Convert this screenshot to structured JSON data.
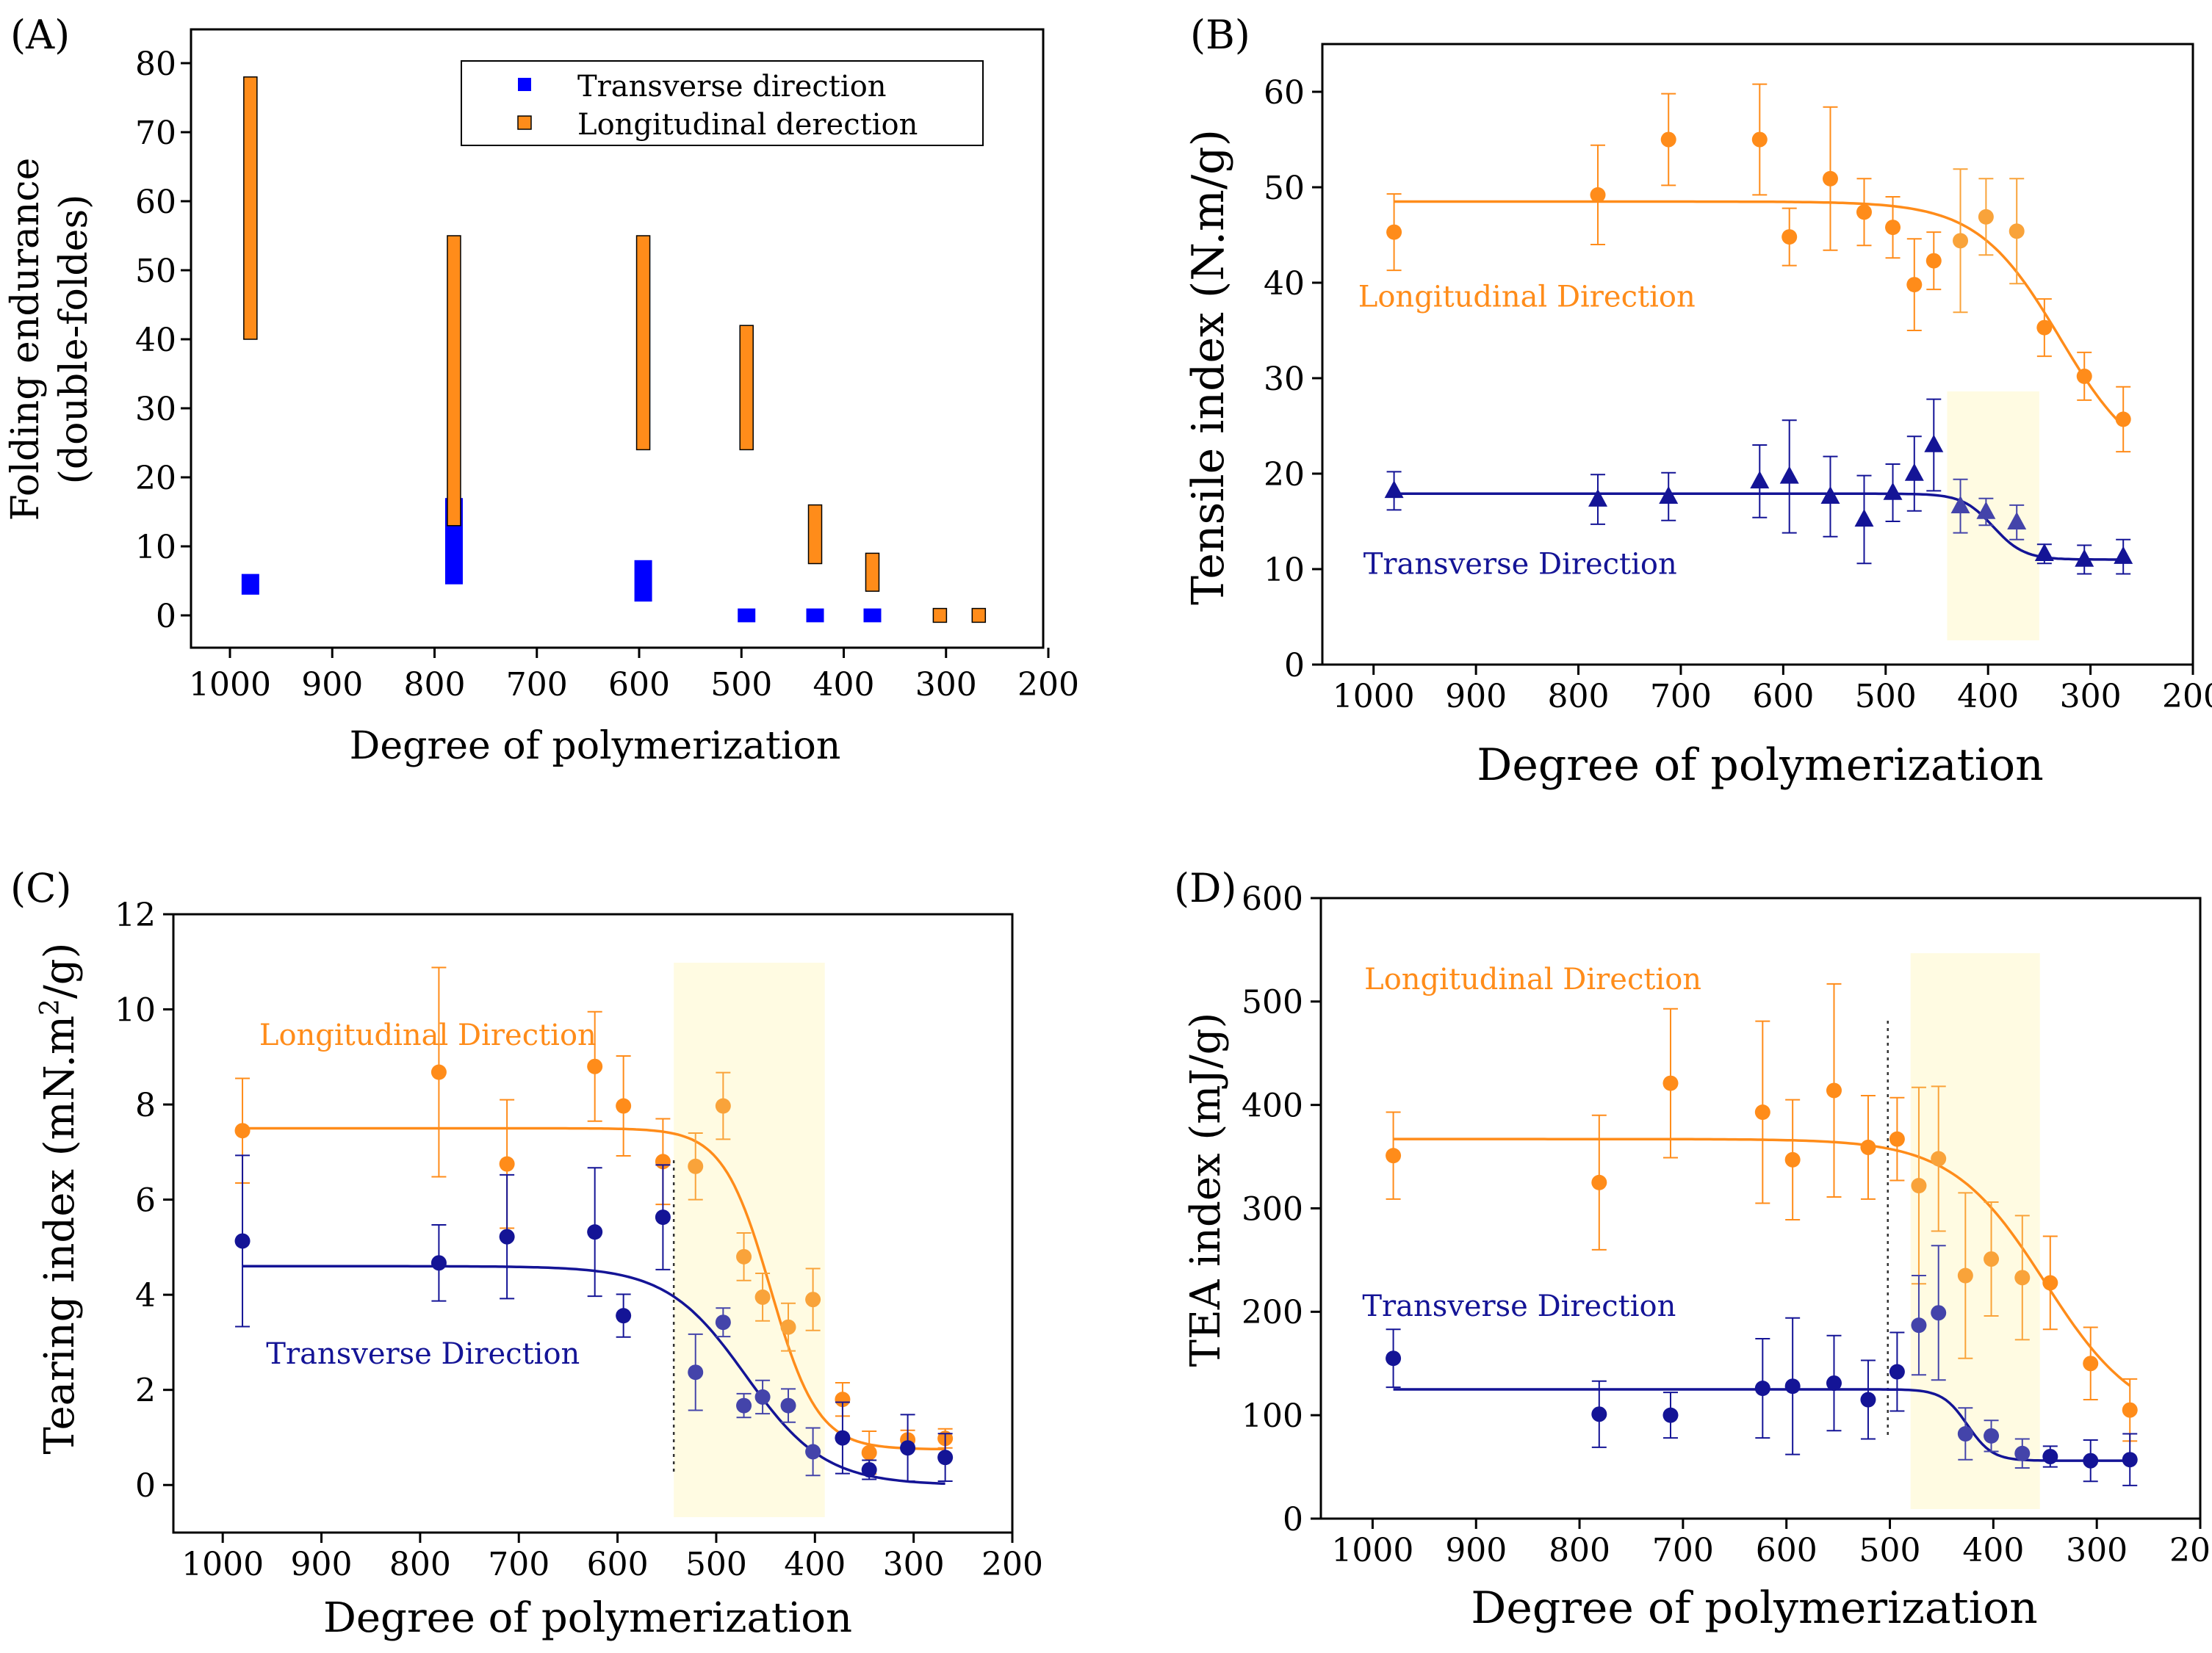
{
  "colors": {
    "orange": "#FF8C1A",
    "orange_light": "#F9A33A",
    "blue": "#0000FF",
    "navy": "#141496",
    "navy_light": "#4444AA",
    "shade": "#FFFBE2",
    "axis": "#000000"
  },
  "chart_data": [
    {
      "panel": "(A)",
      "type": "bar",
      "subtype": "floating-range",
      "xlabel": "Degree of polymerization",
      "ylabel": "Folding endurance",
      "ylabel2": "(double-foldes)",
      "xlim": [
        1050,
        200
      ],
      "ylim": [
        -5,
        85
      ],
      "xticks": [
        1000,
        900,
        800,
        700,
        600,
        500,
        400,
        300,
        200
      ],
      "yticks": [
        0,
        10,
        20,
        30,
        40,
        50,
        60,
        70,
        80
      ],
      "legend": {
        "position": "top-right",
        "entries": [
          "Transverse direction",
          "Longitudinal derection"
        ]
      },
      "series": [
        {
          "name": "Transverse direction",
          "color": "blue",
          "bars": [
            {
              "x": 980,
              "low": 3,
              "high": 6
            },
            {
              "x": 781,
              "low": 4.5,
              "high": 17
            },
            {
              "x": 596,
              "low": 2,
              "high": 8
            },
            {
              "x": 495,
              "low": -1,
              "high": 1
            },
            {
              "x": 428,
              "low": -1,
              "high": 1
            },
            {
              "x": 372,
              "low": -1,
              "high": 1
            }
          ]
        },
        {
          "name": "Longitudinal derection",
          "color": "orange",
          "bars": [
            {
              "x": 980,
              "low": 40,
              "high": 78
            },
            {
              "x": 781,
              "low": 13,
              "high": 55
            },
            {
              "x": 596,
              "low": 24,
              "high": 55
            },
            {
              "x": 495,
              "low": 24,
              "high": 42
            },
            {
              "x": 428,
              "low": 7.5,
              "high": 16
            },
            {
              "x": 372,
              "low": 3.5,
              "high": 9
            },
            {
              "x": 306,
              "low": -1,
              "high": 1
            },
            {
              "x": 268,
              "low": -1,
              "high": 1
            }
          ]
        }
      ]
    },
    {
      "panel": "(B)",
      "type": "scatter",
      "xlabel": "Degree of polymerization",
      "ylabel": "Tensile index  (N.m/g)",
      "xlim": [
        1050,
        200
      ],
      "ylim": [
        0,
        65
      ],
      "xticks": [
        1000,
        900,
        800,
        700,
        600,
        500,
        400,
        300,
        200
      ],
      "yticks": [
        0,
        10,
        20,
        30,
        40,
        50,
        60
      ],
      "shade": [
        440,
        350
      ],
      "annotations": [
        {
          "text": "Longitudinal Direction",
          "x": 1015,
          "y": 37.5,
          "color": "orange"
        },
        {
          "text": "Transverse Direction",
          "x": 1010,
          "y": 9.5,
          "color": "navy"
        }
      ],
      "series": [
        {
          "name": "Longitudinal Direction",
          "color": "orange",
          "marker": "circle",
          "x": [
            980,
            781,
            712,
            623,
            594,
            554,
            521,
            493,
            472,
            453,
            427,
            402,
            372,
            345,
            306,
            268
          ],
          "y": [
            45.3,
            49.2,
            55,
            55,
            44.8,
            50.9,
            47.4,
            45.8,
            39.8,
            42.3,
            44.4,
            46.9,
            45.4,
            35.3,
            30.2,
            25.7
          ],
          "err": [
            4.0,
            5.2,
            4.8,
            5.8,
            3.0,
            7.5,
            3.5,
            3.2,
            4.8,
            3.0,
            7.5,
            4.0,
            5.5,
            3.0,
            2.5,
            3.4
          ],
          "fit": {
            "A1": 48.5,
            "A2": 20,
            "x0": 330,
            "dx": 40
          }
        },
        {
          "name": "Transverse Direction",
          "color": "navy",
          "marker": "triangle",
          "x": [
            980,
            781,
            712,
            623,
            594,
            554,
            521,
            493,
            472,
            453,
            427,
            402,
            372,
            345,
            306,
            268
          ],
          "y": [
            18.2,
            17.3,
            17.6,
            19.2,
            19.7,
            17.6,
            15.2,
            18.0,
            20.0,
            23.0,
            16.6,
            16.0,
            14.9,
            11.6,
            11.0,
            11.3
          ],
          "err": [
            2.0,
            2.6,
            2.5,
            3.8,
            5.9,
            4.2,
            4.6,
            3.0,
            3.9,
            4.8,
            2.8,
            1.4,
            1.8,
            1.0,
            1.5,
            1.8
          ],
          "fit": {
            "A1": 17.9,
            "A2": 11.0,
            "x0": 395,
            "dx": 15
          }
        }
      ]
    },
    {
      "panel": "(C)",
      "type": "scatter",
      "xlabel": "Degree of polymerization",
      "ylabel": "Tearing index  (mN.m",
      "ylabel_sup": "2",
      "ylabel_end": "/g)",
      "xlim": [
        1050,
        200
      ],
      "ylim": [
        -1,
        12
      ],
      "xticks": [
        1000,
        900,
        800,
        700,
        600,
        500,
        400,
        300,
        200
      ],
      "yticks": [
        0,
        2,
        4,
        6,
        8,
        10,
        12
      ],
      "shade": [
        543,
        390
      ],
      "vline": 543,
      "annotations": [
        {
          "text": "Longitudinal Direction",
          "x": 963,
          "y": 9.25,
          "color": "orange"
        },
        {
          "text": "Transverse Direction",
          "x": 956,
          "y": 2.55,
          "color": "navy"
        }
      ],
      "series": [
        {
          "name": "Longitudinal Direction",
          "color": "orange",
          "marker": "circle",
          "x": [
            980,
            781,
            712,
            623,
            594,
            554,
            521,
            493,
            472,
            453,
            427,
            402,
            372,
            345,
            306,
            268
          ],
          "y": [
            7.45,
            8.68,
            6.75,
            8.8,
            7.97,
            6.8,
            6.7,
            7.97,
            4.8,
            3.95,
            3.32,
            3.9,
            1.8,
            0.68,
            0.95,
            0.98
          ],
          "err": [
            1.1,
            2.2,
            1.35,
            1.15,
            1.05,
            0.9,
            0.7,
            0.7,
            0.5,
            0.5,
            0.5,
            0.65,
            0.35,
            0.45,
            0.2,
            0.2
          ],
          "fit": {
            "A1": 7.5,
            "A2": 0.75,
            "x0": 445,
            "dx": 24
          }
        },
        {
          "name": "Transverse Direction",
          "color": "navy",
          "marker": "circle",
          "x": [
            980,
            781,
            712,
            623,
            594,
            554,
            521,
            493,
            472,
            453,
            427,
            402,
            372,
            345,
            306,
            268
          ],
          "y": [
            5.13,
            4.67,
            5.22,
            5.32,
            3.56,
            5.63,
            2.37,
            3.42,
            1.67,
            1.85,
            1.67,
            0.7,
            0.99,
            0.32,
            0.78,
            0.58
          ],
          "err": [
            1.8,
            0.8,
            1.3,
            1.35,
            0.45,
            1.1,
            0.8,
            0.3,
            0.25,
            0.35,
            0.35,
            0.5,
            0.75,
            0.2,
            0.7,
            0.5
          ],
          "fit": {
            "A1": 4.6,
            "A2": 0.0,
            "x0": 470,
            "dx": 40
          }
        }
      ]
    },
    {
      "panel": "(D)",
      "type": "scatter",
      "xlabel": "Degree of polymerization",
      "ylabel": "TEA index  (mJ/g)",
      "xlim": [
        1050,
        200
      ],
      "ylim": [
        0,
        600
      ],
      "xticks": [
        1000,
        900,
        800,
        700,
        600,
        500,
        400,
        300,
        200
      ],
      "yticks": [
        0,
        100,
        200,
        300,
        400,
        500,
        600
      ],
      "shade": [
        480,
        355
      ],
      "vline": 502,
      "annotations": [
        {
          "text": "Longitudinal Direction",
          "x": 1008,
          "y": 512,
          "color": "orange"
        },
        {
          "text": "Transverse Direction",
          "x": 1010,
          "y": 196,
          "color": "navy"
        }
      ],
      "series": [
        {
          "name": "Longitudinal Direction",
          "color": "orange",
          "marker": "circle",
          "x": [
            980,
            781,
            712,
            623,
            594,
            554,
            521,
            493,
            472,
            453,
            427,
            402,
            372,
            345,
            306,
            268
          ],
          "y": [
            351,
            325,
            421,
            393,
            347,
            414,
            359,
            367,
            322,
            348,
            235,
            251,
            233,
            228,
            150,
            105
          ],
          "err": [
            42,
            65,
            72,
            88,
            58,
            103,
            50,
            40,
            95,
            70,
            80,
            55,
            60,
            45,
            35,
            30
          ],
          "fit": {
            "A1": 367,
            "A2": 90,
            "x0": 350,
            "dx": 45
          }
        },
        {
          "name": "Transverse Direction",
          "color": "navy",
          "marker": "circle",
          "x": [
            980,
            781,
            712,
            623,
            594,
            554,
            521,
            493,
            472,
            453,
            427,
            402,
            372,
            345,
            306,
            268
          ],
          "y": [
            155,
            101,
            100,
            126,
            128,
            131,
            115,
            142,
            187,
            199,
            82,
            80,
            63,
            60,
            56,
            57
          ],
          "err": [
            28,
            32,
            22,
            48,
            66,
            46,
            38,
            38,
            48,
            65,
            25,
            15,
            14,
            10,
            20,
            25
          ],
          "fit": {
            "A1": 125,
            "A2": 56,
            "x0": 425,
            "dx": 12
          }
        }
      ]
    }
  ]
}
